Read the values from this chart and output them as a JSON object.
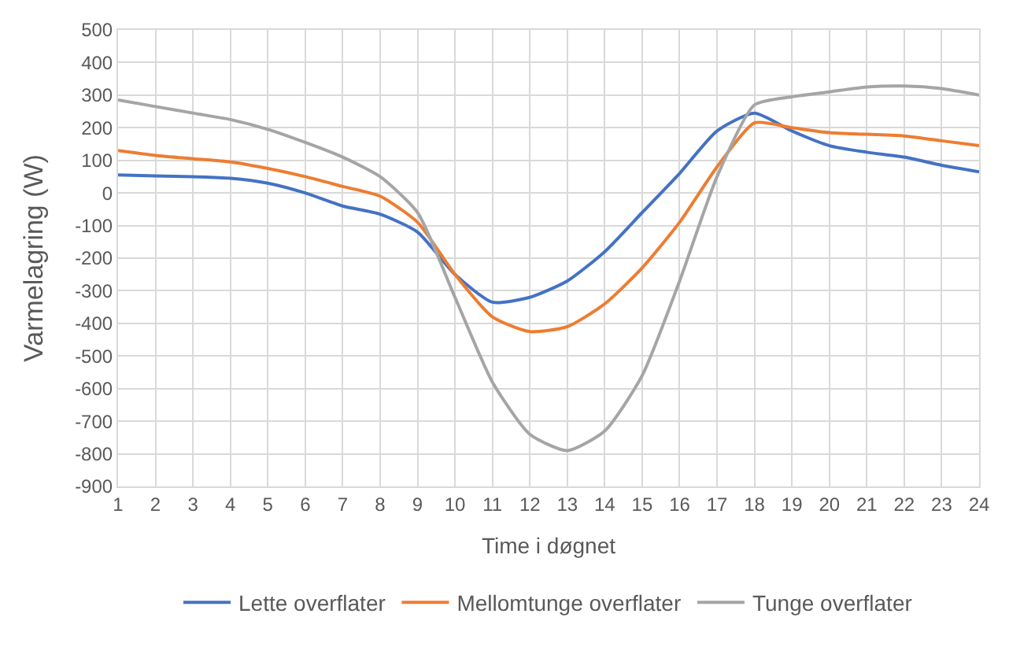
{
  "chart_data": {
    "type": "line",
    "xlabel": "Time i døgnet",
    "ylabel": "Varmelagring (W)",
    "x": [
      1,
      2,
      3,
      4,
      5,
      6,
      7,
      8,
      9,
      10,
      11,
      12,
      13,
      14,
      15,
      16,
      17,
      18,
      19,
      20,
      21,
      22,
      23,
      24
    ],
    "series": [
      {
        "name": "Lette overflater",
        "color": "#4472c4",
        "values": [
          55,
          52,
          50,
          45,
          30,
          0,
          -40,
          -65,
          -120,
          -250,
          -335,
          -320,
          -270,
          -180,
          -60,
          60,
          190,
          245,
          190,
          145,
          125,
          110,
          85,
          65
        ]
      },
      {
        "name": "Mellomtunge overflater",
        "color": "#ed7d31",
        "values": [
          130,
          115,
          105,
          95,
          75,
          50,
          20,
          -10,
          -90,
          -250,
          -380,
          -425,
          -410,
          -340,
          -230,
          -90,
          80,
          215,
          200,
          185,
          180,
          175,
          160,
          145
        ]
      },
      {
        "name": "Tunge overflater",
        "color": "#a5a5a5",
        "values": [
          285,
          265,
          245,
          225,
          195,
          155,
          110,
          50,
          -60,
          -320,
          -580,
          -740,
          -790,
          -730,
          -560,
          -270,
          50,
          270,
          295,
          310,
          325,
          328,
          320,
          300
        ]
      }
    ],
    "xlim": [
      1,
      24
    ],
    "xticks": [
      1,
      2,
      3,
      4,
      5,
      6,
      7,
      8,
      9,
      10,
      11,
      12,
      13,
      14,
      15,
      16,
      17,
      18,
      19,
      20,
      21,
      22,
      23,
      24
    ],
    "ylim": [
      -900,
      500
    ],
    "yticks": [
      -900,
      -800,
      -700,
      -600,
      -500,
      -400,
      -300,
      -200,
      -100,
      0,
      100,
      200,
      300,
      400,
      500
    ],
    "grid": true,
    "legend": "bottom",
    "marker": "none",
    "line_style": "solid"
  }
}
